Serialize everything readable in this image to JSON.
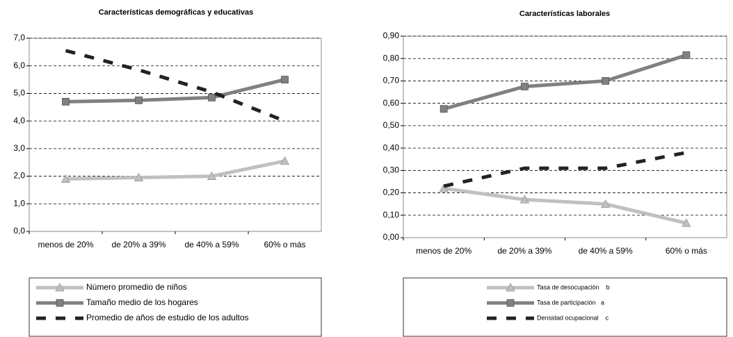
{
  "chart_data": [
    {
      "type": "line",
      "title": "Características demográficas y educativas",
      "categories": [
        "menos de 20%",
        "de 20% a 39%",
        "de 40% a 59%",
        "60% o más"
      ],
      "ylim": [
        0,
        7
      ],
      "yticks": [
        {
          "value": 0,
          "label": "0,0"
        },
        {
          "value": 1,
          "label": "1,0"
        },
        {
          "value": 2,
          "label": "2,0"
        },
        {
          "value": 3,
          "label": "3,0"
        },
        {
          "value": 4,
          "label": "4,0"
        },
        {
          "value": 5,
          "label": "5,0"
        },
        {
          "value": 6,
          "label": "6,0"
        },
        {
          "value": 7,
          "label": "7,0"
        }
      ],
      "grid": true,
      "series": [
        {
          "name": "Número promedio de niños",
          "color": "#c0c0c0",
          "marker": "triangle",
          "values": [
            1.9,
            1.95,
            2.0,
            2.55
          ]
        },
        {
          "name": "Tamaño medio de los hogares",
          "color": "#808080",
          "marker": "square",
          "values": [
            4.7,
            4.75,
            4.85,
            5.5
          ]
        },
        {
          "name": "Promedio de años de estudio de los adultos",
          "color": "#222222",
          "marker": "none",
          "dashed": true,
          "values": [
            6.55,
            5.85,
            5.05,
            4.0
          ]
        }
      ]
    },
    {
      "type": "line",
      "title": "Características laborales",
      "categories": [
        "menos de 20%",
        "de 20% a 39%",
        "de 40% a 59%",
        "60% o más"
      ],
      "ylim": [
        0,
        0.9
      ],
      "yticks": [
        {
          "value": 0,
          "label": "0,00"
        },
        {
          "value": 0.1,
          "label": "0,10"
        },
        {
          "value": 0.2,
          "label": "0,20"
        },
        {
          "value": 0.3,
          "label": "0,30"
        },
        {
          "value": 0.4,
          "label": "0,40"
        },
        {
          "value": 0.5,
          "label": "0,50"
        },
        {
          "value": 0.6,
          "label": "0,60"
        },
        {
          "value": 0.7,
          "label": "0,70"
        },
        {
          "value": 0.8,
          "label": "0,80"
        },
        {
          "value": 0.9,
          "label": "0,90"
        }
      ],
      "grid": true,
      "series": [
        {
          "name": "Tasa de desocupación    b",
          "color": "#c0c0c0",
          "marker": "triangle",
          "values": [
            0.22,
            0.17,
            0.15,
            0.065
          ]
        },
        {
          "name": "Tasa de participación   a",
          "color": "#808080",
          "marker": "square",
          "values": [
            0.575,
            0.675,
            0.7,
            0.815
          ]
        },
        {
          "name": "Densidad ocupacional    c",
          "color": "#222222",
          "marker": "none",
          "dashed": true,
          "values": [
            0.23,
            0.31,
            0.31,
            0.38
          ]
        }
      ]
    }
  ]
}
